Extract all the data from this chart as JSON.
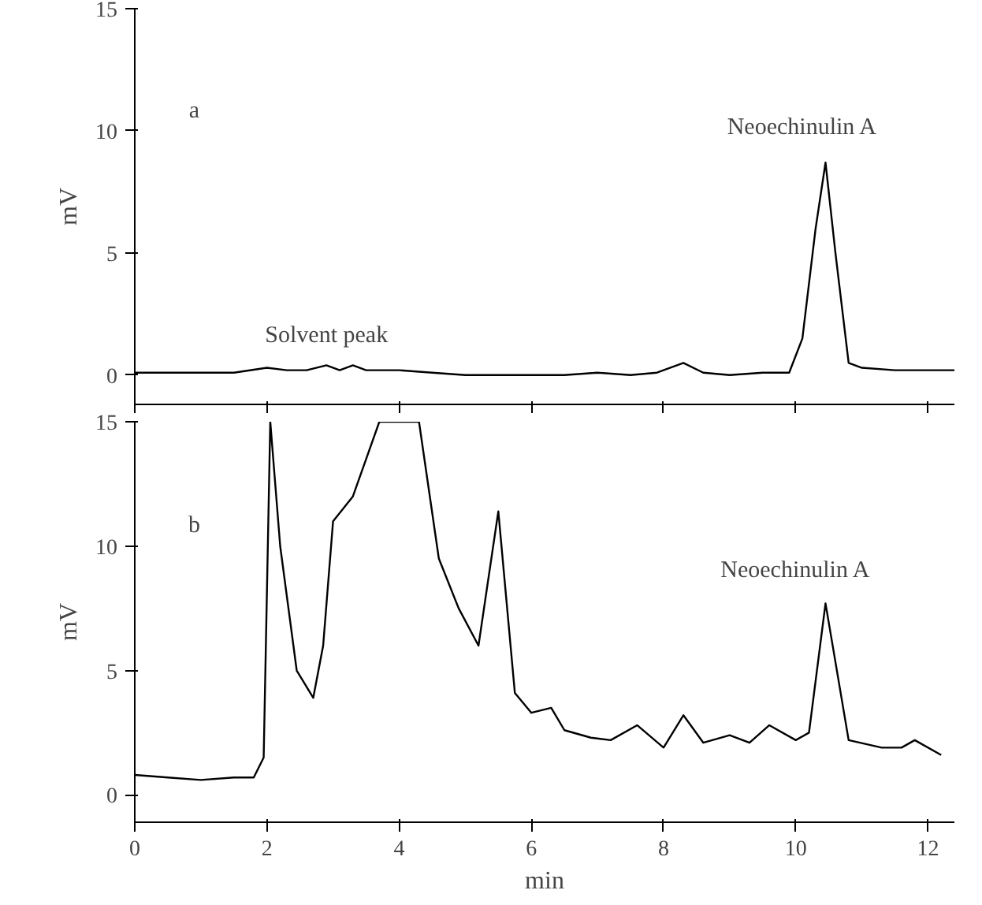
{
  "chart_data": [
    {
      "type": "line",
      "ylabel": "mV",
      "annotations": [
        "a",
        "Solvent peak",
        "Neoechinulin A"
      ],
      "x": [
        0,
        0.5,
        1.0,
        1.5,
        2.0,
        2.3,
        2.6,
        2.9,
        3.1,
        3.3,
        3.5,
        4.0,
        4.5,
        5.0,
        5.5,
        6.0,
        6.5,
        7.0,
        7.5,
        7.9,
        8.3,
        8.6,
        9.0,
        9.5,
        9.9,
        10.1,
        10.3,
        10.45,
        10.6,
        10.8,
        11.0,
        11.5,
        12.0,
        12.4
      ],
      "series": [
        {
          "color": "#000000",
          "values": [
            0.1,
            0.1,
            0.1,
            0.1,
            0.3,
            0.2,
            0.2,
            0.4,
            0.2,
            0.4,
            0.2,
            0.2,
            0.1,
            0.0,
            0.0,
            0.0,
            0.0,
            0.1,
            0.0,
            0.1,
            0.5,
            0.1,
            0.0,
            0.1,
            0.1,
            1.5,
            6.0,
            8.7,
            5.0,
            0.5,
            0.3,
            0.2,
            0.2,
            0.2
          ]
        }
      ],
      "xlim": [
        0,
        12.4
      ],
      "ylim": [
        -1.2,
        15
      ],
      "xticks": [
        0,
        2,
        4,
        6,
        8,
        10,
        12
      ],
      "yticks": [
        0,
        5,
        10,
        15
      ],
      "tick_labels": "y",
      "grid": false
    },
    {
      "type": "line",
      "xlabel": "min",
      "ylabel": "mV",
      "annotations": [
        "b",
        "Neoechinulin A"
      ],
      "x": [
        0,
        0.5,
        1.0,
        1.5,
        1.8,
        1.95,
        2.05,
        2.2,
        2.45,
        2.7,
        2.85,
        3.0,
        3.3,
        3.5,
        3.7,
        4.0,
        4.3,
        4.6,
        4.9,
        5.2,
        5.5,
        5.75,
        6.0,
        6.3,
        6.5,
        6.9,
        7.2,
        7.6,
        8.0,
        8.3,
        8.6,
        9.0,
        9.3,
        9.6,
        10.0,
        10.2,
        10.45,
        10.8,
        11.3,
        11.6,
        11.8,
        12.2
      ],
      "series": [
        {
          "color": "#000000",
          "values": [
            0.8,
            0.7,
            0.6,
            0.7,
            0.7,
            1.5,
            15,
            10.0,
            5.0,
            3.9,
            6.0,
            11.0,
            12.0,
            13.5,
            15,
            15,
            15,
            9.5,
            7.5,
            6.0,
            11.4,
            4.1,
            3.3,
            3.5,
            2.6,
            2.3,
            2.2,
            2.8,
            1.9,
            3.2,
            2.1,
            2.4,
            2.1,
            2.8,
            2.2,
            2.5,
            7.7,
            2.2,
            1.9,
            1.9,
            2.2,
            1.6
          ]
        }
      ],
      "xlim": [
        0,
        12.4
      ],
      "ylim": [
        -1.1,
        15
      ],
      "xticks": [
        0,
        2,
        4,
        6,
        8,
        10,
        12
      ],
      "yticks": [
        0,
        5,
        10,
        15
      ],
      "grid": false
    }
  ]
}
